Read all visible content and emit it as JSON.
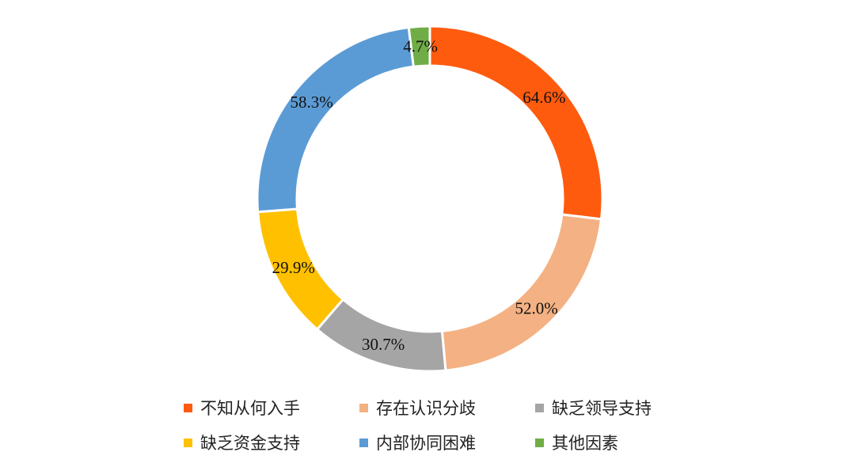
{
  "chart_data": {
    "type": "pie",
    "donut": true,
    "categories": [
      "不知从何入手",
      "存在认识分歧",
      "缺乏领导支持",
      "缺乏资金支持",
      "内部协同困难",
      "其他因素"
    ],
    "values": [
      64.6,
      52.0,
      30.7,
      29.9,
      58.3,
      4.7
    ],
    "value_labels": [
      "64.6%",
      "52.0%",
      "30.7%",
      "29.9%",
      "58.3%",
      "4.7%"
    ],
    "colors": [
      "#FF5B0F",
      "#F4B183",
      "#A5A5A5",
      "#FFC000",
      "#5B9BD5",
      "#70AD47"
    ],
    "legend_position": "bottom"
  },
  "legend": {
    "items": [
      {
        "label": "不知从何入手",
        "color": "#FF5B0F"
      },
      {
        "label": "存在认识分歧",
        "color": "#F4B183"
      },
      {
        "label": "缺乏领导支持",
        "color": "#A5A5A5"
      },
      {
        "label": "缺乏资金支持",
        "color": "#FFC000"
      },
      {
        "label": "内部协同困难",
        "color": "#5B9BD5"
      },
      {
        "label": "其他因素",
        "color": "#70AD47"
      }
    ]
  }
}
